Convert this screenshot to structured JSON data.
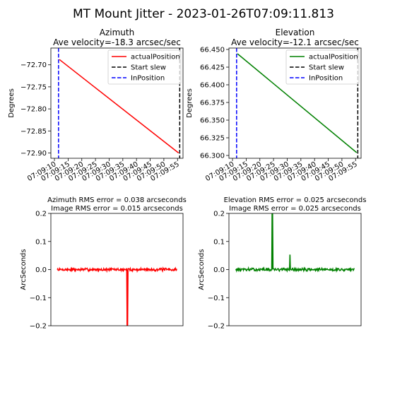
{
  "figure": {
    "suptitle": "MT Mount Jitter - 2023-01-26T07:09:11.813"
  },
  "chart_data": [
    {
      "id": "azimuth",
      "type": "line",
      "title": "Azimuth",
      "subtitle": "Ave velocity=-18.3 arcsec/sec",
      "xlabel": "",
      "ylabel": "Degrees",
      "x_ticks": [
        "07:09:10",
        "07:09:15",
        "07:09:20",
        "07:09:25",
        "07:09:30",
        "07:09:35",
        "07:09:40",
        "07:09:45",
        "07:09:50",
        "07:09:55"
      ],
      "xlim": [
        8.7,
        57.0
      ],
      "y_ticks": [
        -72.7,
        -72.75,
        -72.8,
        -72.85,
        -72.9
      ],
      "y_tick_labels": [
        "−72.70",
        "−72.75",
        "−72.80",
        "−72.85",
        "−72.90"
      ],
      "ylim": [
        -72.912,
        -72.662
      ],
      "legend": {
        "position": "upper right",
        "entries": [
          {
            "label": "actualPosition",
            "color": "#ff0000",
            "style": "solid"
          },
          {
            "label": "Start slew",
            "color": "#000000",
            "style": "dashed"
          },
          {
            "label": "InPosition",
            "color": "#0000ff",
            "style": "dashed"
          }
        ]
      },
      "series": [
        {
          "name": "actualPosition",
          "color": "#ff0000",
          "x": [
            11.8,
            55.4
          ],
          "y": [
            -72.688,
            -72.9
          ]
        }
      ],
      "vlines": [
        {
          "name": "Start slew",
          "x": 55.8,
          "color": "#000000",
          "style": "dashed"
        },
        {
          "name": "InPosition",
          "x": 11.5,
          "color": "#0000ff",
          "style": "dashed"
        }
      ]
    },
    {
      "id": "elevation",
      "type": "line",
      "title": "Elevation",
      "subtitle": "Ave velocity=-12.1 arcsec/sec",
      "xlabel": "",
      "ylabel": "Degrees",
      "x_ticks": [
        "07:09:10",
        "07:09:15",
        "07:09:20",
        "07:09:25",
        "07:09:30",
        "07:09:35",
        "07:09:40",
        "07:09:45",
        "07:09:50",
        "07:09:55"
      ],
      "xlim": [
        8.7,
        57.0
      ],
      "y_ticks": [
        66.45,
        66.425,
        66.4,
        66.375,
        66.35,
        66.325,
        66.3
      ],
      "y_tick_labels": [
        "66.450",
        "66.425",
        "66.400",
        "66.375",
        "66.350",
        "66.325",
        "66.300"
      ],
      "ylim": [
        66.296,
        66.452
      ],
      "legend": {
        "position": "upper right",
        "entries": [
          {
            "label": "actualPosition",
            "color": "#008000",
            "style": "solid"
          },
          {
            "label": "Start slew",
            "color": "#000000",
            "style": "dashed"
          },
          {
            "label": "InPosition",
            "color": "#0000ff",
            "style": "dashed"
          }
        ]
      },
      "series": [
        {
          "name": "actualPosition",
          "color": "#008000",
          "x": [
            11.8,
            55.4
          ],
          "y": [
            66.444,
            66.304
          ]
        }
      ],
      "vlines": [
        {
          "name": "Start slew",
          "x": 55.8,
          "color": "#000000",
          "style": "dashed"
        },
        {
          "name": "InPosition",
          "x": 11.5,
          "color": "#0000ff",
          "style": "dashed"
        }
      ]
    },
    {
      "id": "azimuth-error",
      "type": "line",
      "title": "Azimuth RMS error = 0.038 arcseconds",
      "subtitle": "Image RMS error = 0.015 arcseconds",
      "xlabel": "",
      "ylabel": "ArcSeconds",
      "x_ticks": [],
      "xlim": [
        0,
        100
      ],
      "y_ticks": [
        0.2,
        0.1,
        0.0,
        -0.1,
        -0.2
      ],
      "y_tick_labels": [
        "0.2",
        "0.1",
        "0.0",
        "−0.1",
        "−0.2"
      ],
      "ylim": [
        -0.2,
        0.2
      ],
      "series": [
        {
          "name": "azimuth-error",
          "color": "#ff0000",
          "x_range": [
            4.8,
            95.3
          ],
          "noise": 0.004,
          "seed": 7,
          "spikes": [
            {
              "x": 57.7,
              "y": -0.2
            },
            {
              "x": 57.9,
              "y": -0.2
            }
          ]
        }
      ]
    },
    {
      "id": "elevation-error",
      "type": "line",
      "title": "Elevation RMS error = 0.025 arcseconds",
      "subtitle": "Image RMS error = 0.025 arcseconds",
      "xlabel": "",
      "ylabel": "ArcSeconds",
      "x_ticks": [],
      "xlim": [
        0,
        100
      ],
      "y_ticks": [
        0.2,
        0.1,
        0.0,
        -0.1,
        -0.2
      ],
      "y_tick_labels": [
        "0.2",
        "0.1",
        "0.0",
        "−0.1",
        "−0.2"
      ],
      "ylim": [
        -0.2,
        0.2
      ],
      "series": [
        {
          "name": "elevation-error",
          "color": "#008000",
          "x_range": [
            5.1,
            94.8
          ],
          "noise": 0.004,
          "seed": 13,
          "spikes": [
            {
              "x": 32.7,
              "y": 0.2
            },
            {
              "x": 32.9,
              "y": 0.2
            },
            {
              "x": 46.2,
              "y": 0.053
            }
          ]
        }
      ]
    }
  ]
}
